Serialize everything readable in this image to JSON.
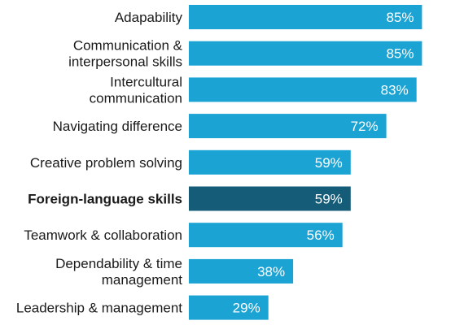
{
  "chart_data": {
    "type": "bar",
    "orientation": "horizontal",
    "categories": [
      [
        "Adapability"
      ],
      [
        "Communication &",
        "interpersonal skills"
      ],
      [
        "Intercultural",
        "communication"
      ],
      [
        "Navigating difference"
      ],
      [
        "Creative problem solving"
      ],
      [
        "Foreign-language skills"
      ],
      [
        "Teamwork & collaboration"
      ],
      [
        "Dependability & time",
        "management"
      ],
      [
        "Leadership & management"
      ]
    ],
    "values": [
      85,
      85,
      83,
      72,
      59,
      59,
      56,
      38,
      29
    ],
    "value_labels": [
      "85%",
      "85%",
      "83%",
      "72%",
      "59%",
      "59%",
      "56%",
      "38%",
      "29%"
    ],
    "highlighted_index": 5,
    "xlim": [
      0,
      100
    ],
    "grid": false,
    "colors": {
      "bar": "#1ba3d4",
      "highlight": "#145c78"
    }
  }
}
